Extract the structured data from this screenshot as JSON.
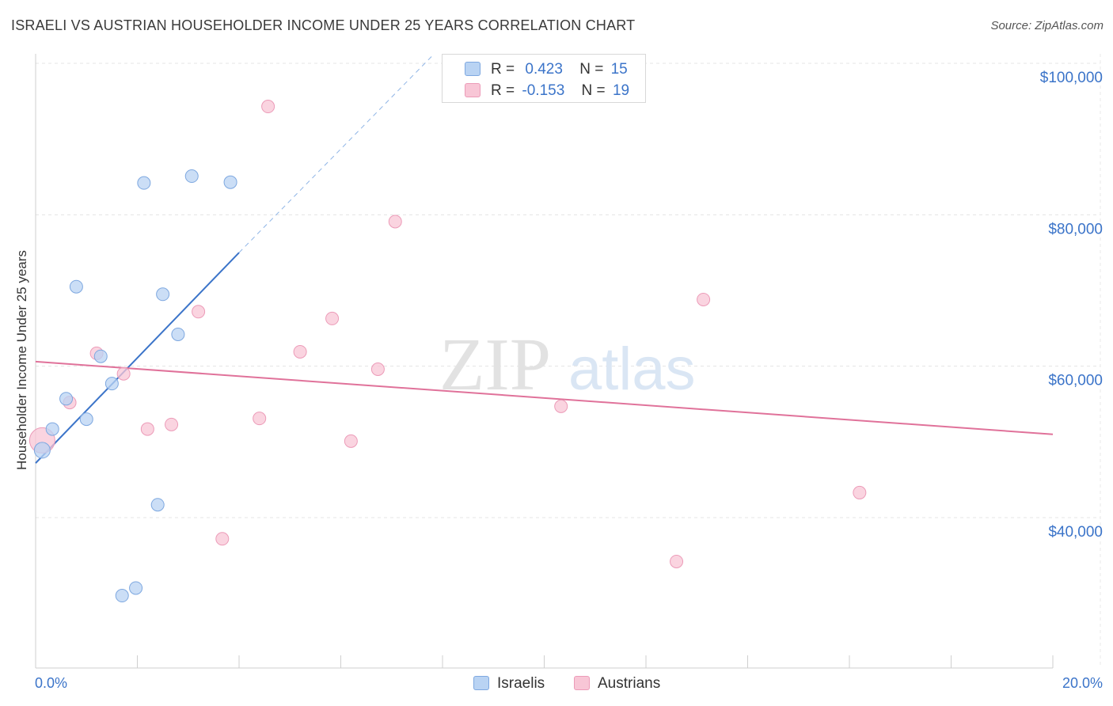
{
  "chart_data": {
    "type": "scatter",
    "title": "ISRAELI VS AUSTRIAN HOUSEHOLDER INCOME UNDER 25 YEARS CORRELATION CHART",
    "source": "Source: ZipAtlas.com",
    "xlabel": "",
    "ylabel": "Householder Income Under 25 years",
    "xlim": [
      0,
      20
    ],
    "ylim": [
      20000,
      102000
    ],
    "x_tick_labels": {
      "min": "0.0%",
      "max": "20.0%"
    },
    "y_ticks": [
      {
        "value": 40000,
        "label": "$40,000"
      },
      {
        "value": 60000,
        "label": "$60,000"
      },
      {
        "value": 80000,
        "label": "$80,000"
      },
      {
        "value": 100000,
        "label": "$100,000"
      }
    ],
    "watermark": {
      "part1": "ZIP",
      "part2": "atlas"
    },
    "series": [
      {
        "name": "Israelis",
        "color": "#3b74c9",
        "fill": "#b9d3f3",
        "stroke": "#7ea8e0",
        "R": "0.423",
        "N": "15",
        "points": [
          [
            0.13,
            48900
          ],
          [
            0.33,
            51700
          ],
          [
            0.6,
            55700
          ],
          [
            0.8,
            70500
          ],
          [
            1.0,
            53000
          ],
          [
            1.28,
            61300
          ],
          [
            1.5,
            57700
          ],
          [
            1.7,
            29700
          ],
          [
            1.97,
            30700
          ],
          [
            2.13,
            84200
          ],
          [
            2.4,
            41700
          ],
          [
            2.5,
            69500
          ],
          [
            2.8,
            64200
          ],
          [
            3.07,
            85100
          ],
          [
            3.83,
            84300
          ]
        ],
        "trend": {
          "x1": 0.0,
          "y1": 47200,
          "x2": 4.0,
          "y2": 75000,
          "dash_to_x": 7.8,
          "dash_to_y": 101000
        }
      },
      {
        "name": "Austrians",
        "color": "#e0729a",
        "fill": "#f8c6d6",
        "stroke": "#ec9bb8",
        "R": "-0.153",
        "N": "19",
        "points": [
          [
            0.13,
            50200
          ],
          [
            0.67,
            55200
          ],
          [
            1.2,
            61700
          ],
          [
            1.73,
            59000
          ],
          [
            2.2,
            51700
          ],
          [
            2.67,
            52300
          ],
          [
            3.2,
            67200
          ],
          [
            3.67,
            37200
          ],
          [
            4.4,
            53100
          ],
          [
            4.57,
            94300
          ],
          [
            5.2,
            61900
          ],
          [
            5.83,
            66300
          ],
          [
            6.2,
            50100
          ],
          [
            6.73,
            59600
          ],
          [
            7.07,
            79100
          ],
          [
            10.33,
            54700
          ],
          [
            12.6,
            34200
          ],
          [
            13.13,
            68800
          ],
          [
            16.2,
            43300
          ]
        ],
        "trend": {
          "x1": 0.0,
          "y1": 60600,
          "x2": 20.0,
          "y2": 51000
        }
      }
    ],
    "legend": {
      "r_label": "R =",
      "n_label": "N =",
      "position": "top-center"
    }
  }
}
